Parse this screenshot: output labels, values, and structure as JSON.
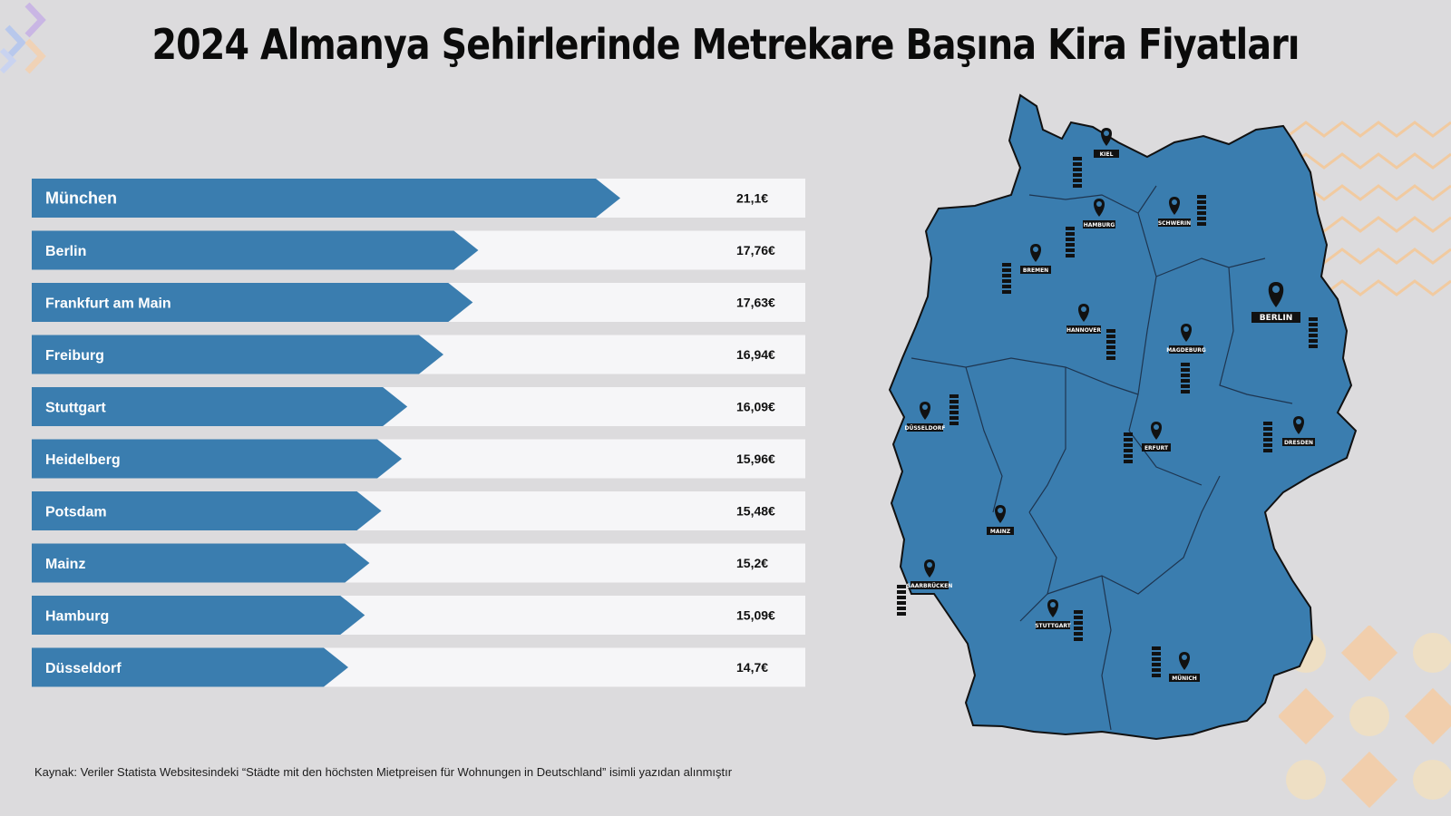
{
  "title": "2024 Almanya Şehirlerinde Metrekare Başına Kira Fiyatları",
  "source": "Kaynak: Veriler Statista Websitesindeki “Städte mit den höchsten Mietpreisen für Wohnungen in Deutschland”  isimli yazıdan alınmıştır",
  "colors": {
    "bar": "#3a7daf",
    "track": "#f6f6f8",
    "background": "#dcdbdd",
    "map": "#3a7daf"
  },
  "chart_data": {
    "type": "bar",
    "orientation": "horizontal",
    "categories": [
      "München",
      "Berlin",
      "Frankfurt am Main",
      "Freiburg",
      "Stuttgart",
      "Heidelberg",
      "Potsdam",
      "Mainz",
      "Hamburg",
      "Düsseldorf"
    ],
    "values": [
      21.1,
      17.76,
      17.63,
      16.94,
      16.09,
      15.96,
      15.48,
      15.2,
      15.09,
      14.7
    ],
    "value_labels": [
      "21,1€",
      "17,76€",
      "17,63€",
      "16,94€",
      "16,09€",
      "15,96€",
      "15,48€",
      "15,2€",
      "15,09€",
      "14,7€"
    ],
    "unit": "€",
    "title": "2024 Almanya Şehirlerinde Metrekare Başına Kira Fiyatları",
    "xlabel": "",
    "ylabel": "",
    "grid": false,
    "legend": "none"
  },
  "map": {
    "cities": [
      "KIEL",
      "HAMBURG",
      "SCHWERIN",
      "BREMEN",
      "BERLIN",
      "HANNOVER",
      "MAGDEBURG",
      "DÜSSELDORF",
      "ERFURT",
      "DRESDEN",
      "MAINZ",
      "SAARBRÜCKEN",
      "STUTTGART",
      "MÜNICH"
    ]
  }
}
